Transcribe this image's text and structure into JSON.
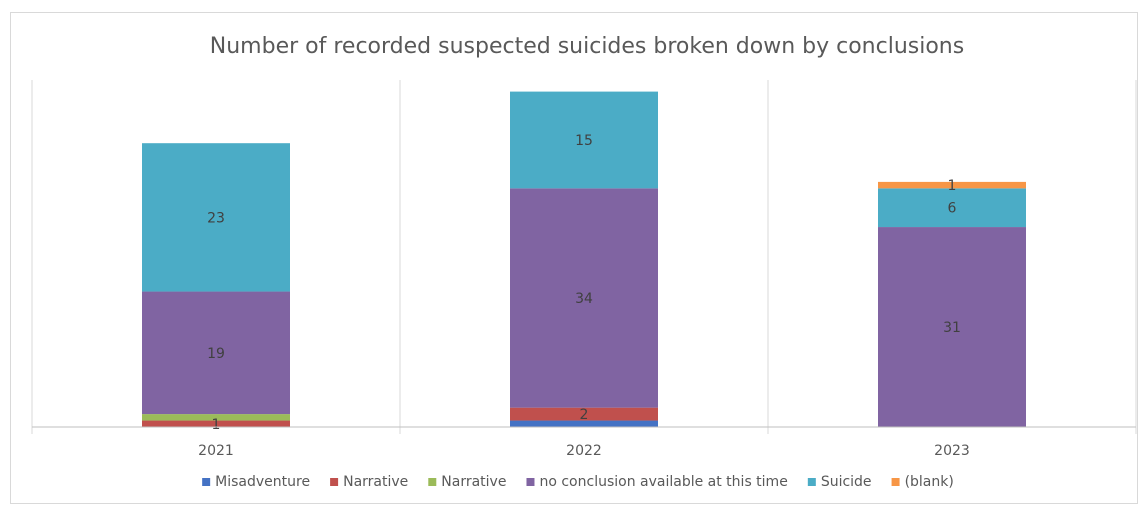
{
  "chart_data": {
    "type": "bar",
    "stacked": true,
    "title": "Number of recorded suspected suicides broken down by conclusions",
    "xlabel": "",
    "ylabel": "",
    "categories": [
      "2021",
      "2022",
      "2023"
    ],
    "series": [
      {
        "name": "Misadventure",
        "color": "#4472c4",
        "values": [
          0,
          1,
          0
        ],
        "labels": [
          "",
          "",
          ""
        ]
      },
      {
        "name": "Narrative",
        "color": "#c0504d",
        "values": [
          1,
          2,
          0
        ],
        "labels": [
          "1",
          "2",
          ""
        ]
      },
      {
        "name": "Narrative",
        "color": "#9bbb59",
        "values": [
          1,
          0,
          0
        ],
        "labels": [
          "",
          "",
          ""
        ]
      },
      {
        "name": "no conclusion available at this time",
        "color": "#8064a2",
        "values": [
          19,
          34,
          31
        ],
        "labels": [
          "19",
          "34",
          "31"
        ]
      },
      {
        "name": "Suicide",
        "color": "#4bacc6",
        "values": [
          23,
          15,
          6
        ],
        "labels": [
          "23",
          "15",
          "6"
        ]
      },
      {
        "name": "(blank)",
        "color": "#f79646",
        "values": [
          0,
          0,
          1
        ],
        "labels": [
          "",
          "",
          "1"
        ]
      }
    ],
    "grid": {
      "vertical_separators": true,
      "horizontal": false
    },
    "y_axis_visible": false,
    "legend_position": "bottom"
  }
}
